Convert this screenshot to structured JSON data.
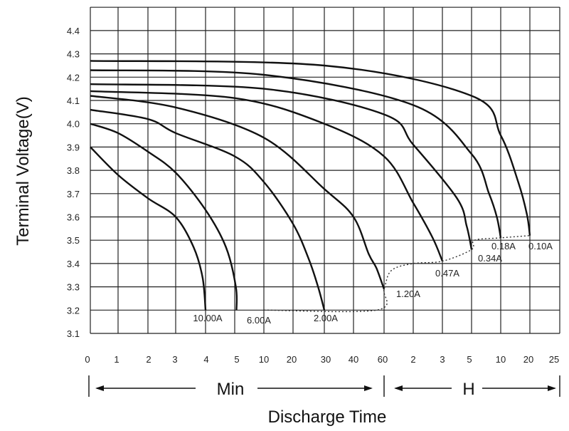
{
  "chart_data": {
    "type": "line",
    "title": "",
    "ylabel": "Terminal Voltage(V)",
    "xlabel": "Discharge Time",
    "ylim": [
      3.1,
      4.45
    ],
    "yticks": [
      "3.1",
      "3.2",
      "3.3",
      "3.4",
      "3.5",
      "3.6",
      "3.7",
      "3.8",
      "3.9",
      "4.0",
      "4.1",
      "4.2",
      "4.3",
      "4.4"
    ],
    "xticks": [
      "0",
      "1",
      "2",
      "3",
      "4",
      "5",
      "10",
      "20",
      "30",
      "40",
      "60",
      "2",
      "3",
      "5",
      "10",
      "20",
      "25"
    ],
    "x_units": {
      "min_label": "Min",
      "hour_label": "H"
    },
    "grid": true,
    "series": [
      {
        "name": "10.00A",
        "points": [
          [
            0,
            3.9
          ],
          [
            1,
            3.78
          ],
          [
            2,
            3.68
          ],
          [
            3,
            3.6
          ],
          [
            3.6,
            3.47
          ],
          [
            3.9,
            3.34
          ],
          [
            4,
            3.2
          ]
        ]
      },
      {
        "name": "6.00A",
        "points": [
          [
            0,
            4.0
          ],
          [
            1,
            3.96
          ],
          [
            2,
            3.88
          ],
          [
            3,
            3.79
          ],
          [
            4,
            3.63
          ],
          [
            4.7,
            3.47
          ],
          [
            5.2,
            3.3
          ],
          [
            5.3,
            3.2
          ]
        ]
      },
      {
        "name": "2.00A",
        "points": [
          [
            0,
            4.06
          ],
          [
            2,
            4.02
          ],
          [
            3,
            3.96
          ],
          [
            5,
            3.86
          ],
          [
            10,
            3.75
          ],
          [
            20,
            3.57
          ],
          [
            25,
            3.42
          ],
          [
            28,
            3.3
          ],
          [
            30,
            3.2
          ]
        ]
      },
      {
        "name": "1.20A",
        "points": [
          [
            0,
            4.12
          ],
          [
            3,
            4.07
          ],
          [
            10,
            3.94
          ],
          [
            30,
            3.72
          ],
          [
            40,
            3.6
          ],
          [
            50,
            3.44
          ],
          [
            55,
            3.38
          ],
          [
            60,
            3.29
          ]
        ]
      },
      {
        "name": "0.47A",
        "points": [
          [
            0,
            4.14
          ],
          [
            5,
            4.11
          ],
          [
            30,
            4.0
          ],
          [
            60,
            3.86
          ],
          [
            120,
            3.66
          ],
          [
            160,
            3.51
          ],
          [
            180,
            3.41
          ]
        ]
      },
      {
        "name": "0.34A",
        "points": [
          [
            0,
            4.17
          ],
          [
            10,
            4.15
          ],
          [
            60,
            4.04
          ],
          [
            120,
            3.91
          ],
          [
            240,
            3.68
          ],
          [
            280,
            3.56
          ],
          [
            300,
            3.46
          ]
        ]
      },
      {
        "name": "0.18A",
        "points": [
          [
            0,
            4.23
          ],
          [
            10,
            4.21
          ],
          [
            120,
            4.08
          ],
          [
            300,
            3.87
          ],
          [
            480,
            3.7
          ],
          [
            560,
            3.6
          ],
          [
            600,
            3.51
          ]
        ]
      },
      {
        "name": "0.10A",
        "points": [
          [
            0,
            4.27
          ],
          [
            30,
            4.25
          ],
          [
            300,
            4.12
          ],
          [
            600,
            3.95
          ],
          [
            960,
            3.75
          ],
          [
            1140,
            3.61
          ],
          [
            1200,
            3.52
          ]
        ]
      }
    ],
    "end_voltage_line": {
      "style": "dotted",
      "points": [
        [
          10,
          3.2
        ],
        [
          55,
          3.2
        ],
        [
          60,
          3.29
        ],
        [
          75,
          3.37
        ],
        [
          120,
          3.4
        ],
        [
          180,
          3.41
        ],
        [
          300,
          3.46
        ],
        [
          330,
          3.5
        ],
        [
          600,
          3.51
        ],
        [
          1200,
          3.52
        ]
      ]
    }
  }
}
